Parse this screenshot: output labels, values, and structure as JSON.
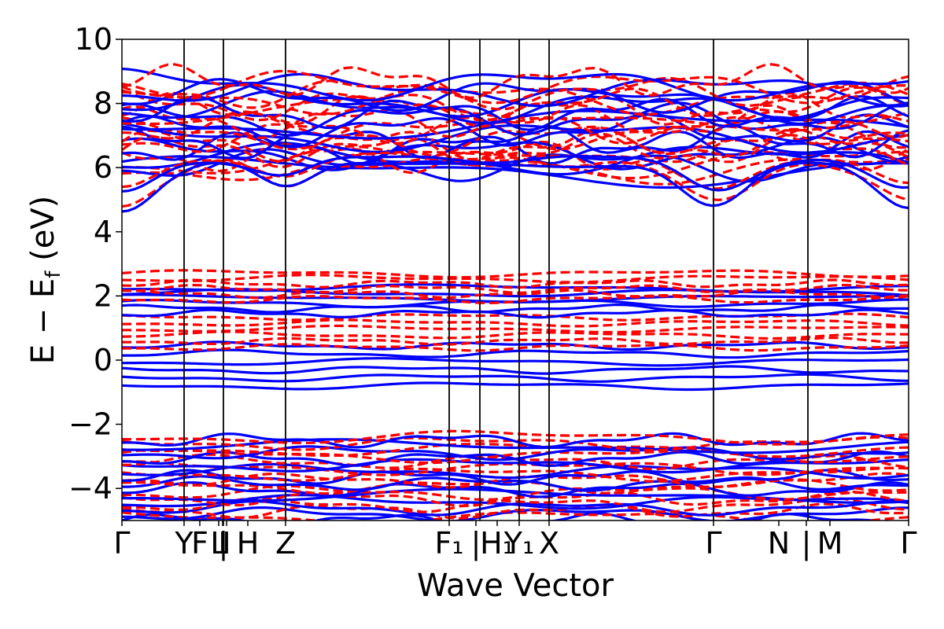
{
  "chart_data": {
    "type": "line",
    "title": "",
    "xlabel": "Wave Vector",
    "ylabel": "E − E_f (eV)",
    "ylabel_parts": {
      "main": "E − E",
      "sub": "f",
      "unit": " (eV)"
    },
    "ylim": [
      -5,
      10
    ],
    "y_ticks": [
      {
        "value": -4,
        "label": "−4"
      },
      {
        "value": -2,
        "label": "−2"
      },
      {
        "value": 0,
        "label": "0"
      },
      {
        "value": 2,
        "label": "2"
      },
      {
        "value": 4,
        "label": "4"
      },
      {
        "value": 6,
        "label": "6"
      },
      {
        "value": 8,
        "label": "8"
      },
      {
        "value": 10,
        "label": "10"
      }
    ],
    "high_symmetry_points": [
      {
        "label": "Γ",
        "x": 0.0
      },
      {
        "label": "Y",
        "x": 0.079
      },
      {
        "label": "F",
        "x": 0.099
      },
      {
        "label": "L",
        "x": 0.123
      },
      {
        "label": "I",
        "x": 0.128
      },
      {
        "label": "|",
        "x": 0.129
      },
      {
        "label": "I",
        "x": 0.133
      },
      {
        "label": "H",
        "x": 0.16
      },
      {
        "label": "Z",
        "x": 0.208
      },
      {
        "label": "F₁",
        "x": 0.416
      },
      {
        "label": "|",
        "x": 0.45
      },
      {
        "label": "H₁",
        "x": 0.477
      },
      {
        "label": "Y₁",
        "x": 0.505
      },
      {
        "label": "X",
        "x": 0.543
      },
      {
        "label": "Γ",
        "x": 0.752
      },
      {
        "label": "N",
        "x": 0.835
      },
      {
        "label": "|",
        "x": 0.87
      },
      {
        "label": "M",
        "x": 0.9
      },
      {
        "label": "Γ",
        "x": 1.0
      }
    ],
    "divider_lines_x": [
      0.079,
      0.129,
      0.208,
      0.416,
      0.455,
      0.505,
      0.543,
      0.752,
      0.872
    ],
    "grid": false,
    "series": [
      {
        "style": "solid",
        "color": "#0000ff",
        "band_count": 60
      },
      {
        "style": "dashed",
        "color": "#ff0000",
        "band_count": 60
      }
    ],
    "band_groups": [
      {
        "range": [
          -5.0,
          -2.5
        ]
      },
      {
        "range": [
          -0.9,
          0.5
        ]
      },
      {
        "range": [
          0.3,
          1.3
        ]
      },
      {
        "range": [
          1.4,
          2.7
        ]
      },
      {
        "range": [
          4.7,
          8.8
        ]
      }
    ]
  }
}
